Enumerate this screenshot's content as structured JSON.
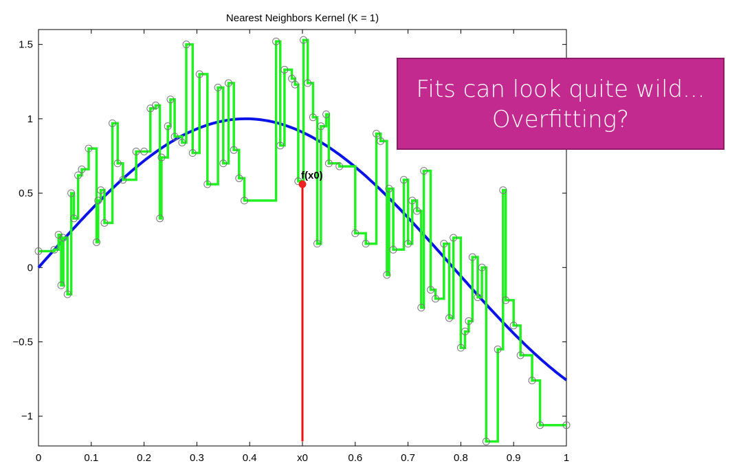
{
  "callout": {
    "line1": "Fits can look quite wild...",
    "line2": "Overfitting?"
  },
  "colors": {
    "true_function": "#0a14e6",
    "fit": "#22f022",
    "query_line": "#ee1111",
    "marker": "#ee2222",
    "data_points": "#777777",
    "callout_bg": "#c22a8f"
  },
  "chart_data": {
    "type": "line",
    "title": "Nearest Neighbors Kernel (K = 1)",
    "xlim": [
      0,
      1
    ],
    "ylim": [
      -1.2,
      1.6
    ],
    "x_ticks": [
      {
        "value": 0,
        "label": "0"
      },
      {
        "value": 0.1,
        "label": "0.1"
      },
      {
        "value": 0.2,
        "label": "0.2"
      },
      {
        "value": 0.3,
        "label": "0.3"
      },
      {
        "value": 0.4,
        "label": "0.4"
      },
      {
        "value": 0.5,
        "label": "x0"
      },
      {
        "value": 0.6,
        "label": "0.6"
      },
      {
        "value": 0.7,
        "label": "0.7"
      },
      {
        "value": 0.8,
        "label": "0.8"
      },
      {
        "value": 0.9,
        "label": "0.9"
      },
      {
        "value": 1,
        "label": "1"
      }
    ],
    "y_ticks": [
      {
        "value": 1.5,
        "label": "1.5"
      },
      {
        "value": 1,
        "label": "1"
      },
      {
        "value": 0.5,
        "label": "0.5"
      },
      {
        "value": 0,
        "label": "0"
      },
      {
        "value": -0.5,
        "label": "−0.5"
      },
      {
        "value": -1,
        "label": "−1"
      }
    ],
    "true_function": {
      "type": "sin",
      "amplitude": 1,
      "frequency": 4
    },
    "query": {
      "x": 0.5,
      "fx": 0.56,
      "label": "f(x0)",
      "line_bottom": -1.17
    },
    "points": [
      [
        0.0,
        0.11
      ],
      [
        0.03,
        0.12
      ],
      [
        0.038,
        0.22
      ],
      [
        0.043,
        -0.12
      ],
      [
        0.047,
        0.2
      ],
      [
        0.055,
        -0.18
      ],
      [
        0.062,
        0.5
      ],
      [
        0.067,
        0.33
      ],
      [
        0.075,
        0.62
      ],
      [
        0.082,
        0.66
      ],
      [
        0.095,
        0.8
      ],
      [
        0.11,
        0.17
      ],
      [
        0.113,
        0.45
      ],
      [
        0.118,
        0.52
      ],
      [
        0.125,
        0.3
      ],
      [
        0.14,
        0.97
      ],
      [
        0.15,
        0.7
      ],
      [
        0.16,
        0.59
      ],
      [
        0.185,
        0.78
      ],
      [
        0.2,
        0.78
      ],
      [
        0.212,
        1.07
      ],
      [
        0.222,
        1.09
      ],
      [
        0.23,
        0.33
      ],
      [
        0.233,
        0.74
      ],
      [
        0.245,
        0.95
      ],
      [
        0.25,
        1.13
      ],
      [
        0.258,
        0.88
      ],
      [
        0.272,
        0.84
      ],
      [
        0.28,
        1.5
      ],
      [
        0.292,
        0.77
      ],
      [
        0.305,
        1.3
      ],
      [
        0.32,
        0.56
      ],
      [
        0.34,
        1.21
      ],
      [
        0.35,
        0.7
      ],
      [
        0.36,
        1.24
      ],
      [
        0.37,
        0.79
      ],
      [
        0.38,
        0.6
      ],
      [
        0.39,
        0.45
      ],
      [
        0.45,
        1.52
      ],
      [
        0.458,
        0.82
      ],
      [
        0.466,
        1.33
      ],
      [
        0.48,
        1.27
      ],
      [
        0.486,
        1.23
      ],
      [
        0.492,
        0.58
      ],
      [
        0.502,
        1.53
      ],
      [
        0.51,
        1.24
      ],
      [
        0.52,
        1.01
      ],
      [
        0.528,
        0.16
      ],
      [
        0.535,
        0.95
      ],
      [
        0.545,
        1.03
      ],
      [
        0.55,
        0.7
      ],
      [
        0.57,
        0.68
      ],
      [
        0.6,
        0.23
      ],
      [
        0.62,
        0.16
      ],
      [
        0.64,
        0.9
      ],
      [
        0.648,
        0.85
      ],
      [
        0.66,
        -0.05
      ],
      [
        0.664,
        0.53
      ],
      [
        0.672,
        0.12
      ],
      [
        0.692,
        0.59
      ],
      [
        0.7,
        0.16
      ],
      [
        0.708,
        0.45
      ],
      [
        0.717,
        0.38
      ],
      [
        0.725,
        -0.27
      ],
      [
        0.73,
        0.65
      ],
      [
        0.743,
        -0.15
      ],
      [
        0.752,
        -0.21
      ],
      [
        0.768,
        0.16
      ],
      [
        0.778,
        -0.34
      ],
      [
        0.786,
        0.2
      ],
      [
        0.8,
        -0.54
      ],
      [
        0.808,
        -0.43
      ],
      [
        0.815,
        -0.36
      ],
      [
        0.822,
        0.07
      ],
      [
        0.832,
        -0.2
      ],
      [
        0.84,
        0.0
      ],
      [
        0.848,
        -1.17
      ],
      [
        0.87,
        -0.55
      ],
      [
        0.88,
        0.52
      ],
      [
        0.885,
        -0.22
      ],
      [
        0.9,
        -0.39
      ],
      [
        0.913,
        -0.59
      ],
      [
        0.935,
        -0.76
      ],
      [
        0.95,
        -1.06
      ],
      [
        1.0,
        -1.06
      ]
    ]
  }
}
